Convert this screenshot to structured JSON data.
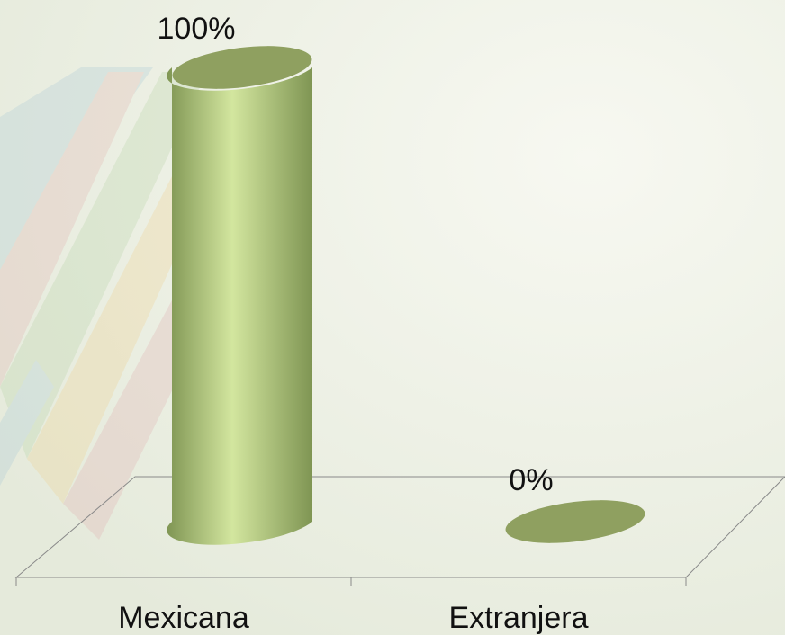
{
  "chart_data": {
    "type": "bar",
    "style": "3d-cylinder",
    "categories": [
      "Mexicana",
      "Extranjera"
    ],
    "values": [
      100,
      0
    ],
    "value_labels": [
      "100%",
      "0%"
    ],
    "ylim": [
      0,
      100
    ],
    "unit": "%",
    "grid": false,
    "legend": "none",
    "colors": {
      "bar": "#b9d08a",
      "bar_light": "#d3e69f",
      "bar_dark": "#7f9553",
      "bar_top": "#8fa060",
      "floor_line": "#8a8a8a",
      "background": "#eef1e4"
    }
  }
}
